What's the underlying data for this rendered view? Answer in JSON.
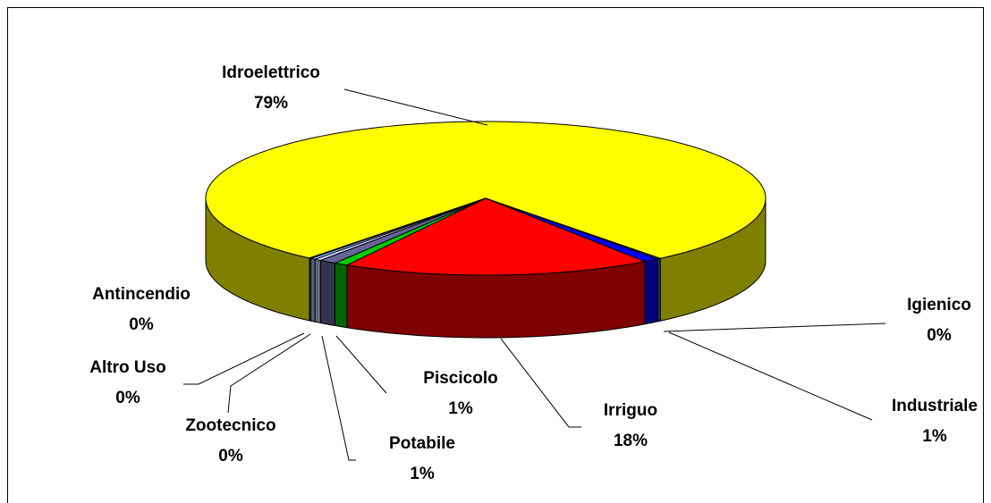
{
  "chart_data": {
    "type": "pie3d",
    "categories": [
      "Idroelettrico",
      "Igienico",
      "Industriale",
      "Irriguo",
      "Piscicolo",
      "Potabile",
      "Zootecnico",
      "Altro Uso",
      "Antincendio"
    ],
    "values": [
      79,
      0.2,
      0.9,
      18,
      0.8,
      1,
      0.4,
      0.3,
      0.1
    ],
    "value_labels": [
      "79%",
      "0%",
      "1%",
      "18%",
      "1%",
      "1%",
      "0%",
      "0%",
      "0%"
    ],
    "colors": [
      "#ffff00",
      "#3366ff",
      "#0000ff",
      "#ff0000",
      "#00cc00",
      "#666699",
      "#ccccff",
      "#99ccff",
      "#008080"
    ]
  }
}
